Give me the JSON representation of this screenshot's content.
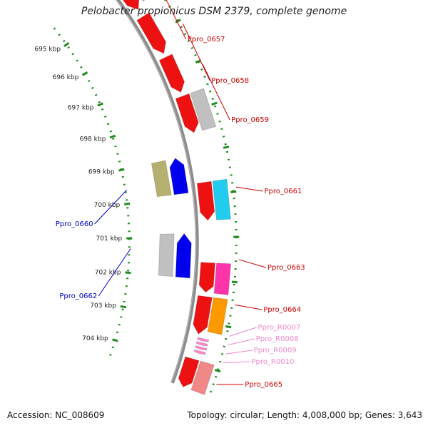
{
  "title": "Pelobacter propionicus DSM 2379, complete genome",
  "footer": {
    "accession": "Accession: NC_008609",
    "summary": "Topology: circular; Length: 4,008,000 bp; Genes: 3,643"
  },
  "colors": {
    "backbone": "#8c8c8c",
    "tick": "#228b22",
    "forward_label": "#cc0000",
    "reverse_label": "#0000cc",
    "rna_label": "#ee88cc"
  },
  "ticks": [
    {
      "label": "695 kbp"
    },
    {
      "label": "696 kbp"
    },
    {
      "label": "697 kbp"
    },
    {
      "label": "698 kbp"
    },
    {
      "label": "699 kbp"
    },
    {
      "label": "700 kbp"
    },
    {
      "label": "701 kbp"
    },
    {
      "label": "702 kbp"
    },
    {
      "label": "703 kbp"
    },
    {
      "label": "704 kbp"
    }
  ],
  "gene_labels": [
    {
      "name": "Ppro_0657",
      "kind": "forward"
    },
    {
      "name": "Ppro_0658",
      "kind": "forward"
    },
    {
      "name": "Ppro_0659",
      "kind": "forward"
    },
    {
      "name": "Ppro_0661",
      "kind": "forward"
    },
    {
      "name": "Ppro_0663",
      "kind": "forward"
    },
    {
      "name": "Ppro_0664",
      "kind": "forward"
    },
    {
      "name": "Ppro_R0007",
      "kind": "rna"
    },
    {
      "name": "Ppro_R0008",
      "kind": "rna"
    },
    {
      "name": "Ppro_R0009",
      "kind": "rna"
    },
    {
      "name": "Ppro_R0010",
      "kind": "rna"
    },
    {
      "name": "Ppro_0665",
      "kind": "forward"
    },
    {
      "name": "Ppro_0660",
      "kind": "reverse"
    },
    {
      "name": "Ppro_0662",
      "kind": "reverse"
    }
  ]
}
